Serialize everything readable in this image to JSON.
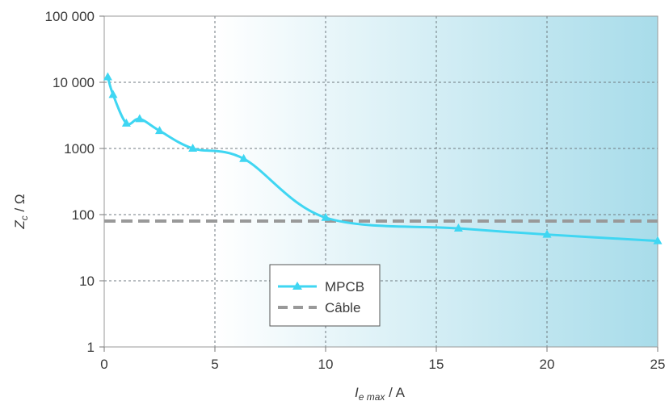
{
  "chart_data": {
    "type": "line",
    "title": "",
    "xlabel": {
      "main": "I",
      "sub": "e max",
      "unit": " / A"
    },
    "ylabel": {
      "main": "Z",
      "sub": "c",
      "unit": " / Ω"
    },
    "xlim": [
      0,
      25
    ],
    "ylim": [
      1,
      100000
    ],
    "yscale": "log",
    "grid": true,
    "x_ticks": [
      0,
      5,
      10,
      15,
      20,
      25
    ],
    "x_tick_labels": [
      "0",
      "5",
      "10",
      "15",
      "20",
      "25"
    ],
    "y_ticks": [
      1,
      10,
      100,
      1000,
      10000,
      100000
    ],
    "y_tick_labels": [
      "1",
      "10",
      "100",
      "1000",
      "10 000",
      "100 000"
    ],
    "legend_position": "lower-center",
    "series": [
      {
        "name": "MPCB",
        "style": "solid-with-triangle-markers",
        "color": "#3fd6f2",
        "x": [
          0.16,
          0.4,
          1.0,
          1.6,
          2.5,
          4.0,
          6.3,
          10,
          16,
          20,
          25
        ],
        "y": [
          12000,
          6500,
          2400,
          2800,
          1850,
          1000,
          700,
          90,
          62,
          50,
          40
        ]
      },
      {
        "name": "Câble",
        "style": "dashed",
        "color": "#999999",
        "x": [
          0,
          25
        ],
        "y": [
          80,
          80
        ]
      }
    ],
    "background_gradient": {
      "from_x": 5,
      "to_x": 25,
      "start_color": "#ffffff",
      "end_color": "#a8dcea"
    }
  }
}
